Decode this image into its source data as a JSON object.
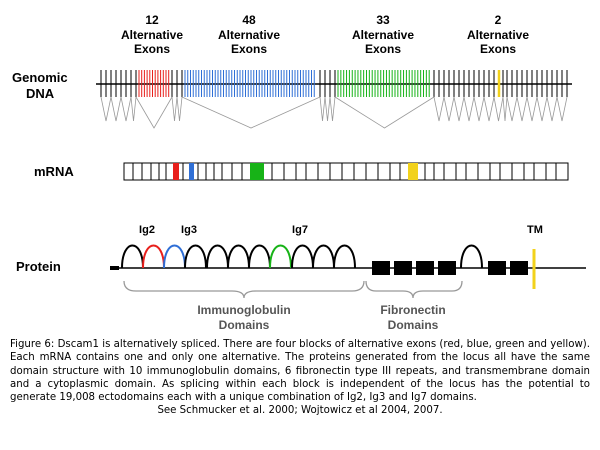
{
  "blocks": [
    {
      "count": "12",
      "label_line1": "Alternative",
      "label_line2": "Exons",
      "color": "#e8201c"
    },
    {
      "count": "48",
      "label_line1": "Alternative",
      "label_line2": "Exons",
      "color": "#2f6fd6"
    },
    {
      "count": "33",
      "label_line1": "Alternative",
      "label_line2": "Exons",
      "color": "#17b317"
    },
    {
      "count": "2",
      "label_line1": "Alternative",
      "label_line2": "Exons",
      "color": "#f2d21b"
    }
  ],
  "rows": {
    "genomic_line1": "Genomic",
    "genomic_line2": "DNA",
    "mrna": "mRNA",
    "protein": "Protein"
  },
  "protein_labels": {
    "ig2": "Ig2",
    "ig3": "Ig3",
    "ig7": "Ig7",
    "tm": "TM"
  },
  "domains": {
    "ig_line1": "Immunoglobulin",
    "ig_line2": "Domains",
    "fn_line1": "Fibronectin",
    "fn_line2": "Domains"
  },
  "caption": {
    "body": "Figure 6: Dscam1 is alternatively spliced. There are four blocks of alternative exons (red, blue, green and yellow). Each mRNA contains one and only one alternative. The proteins generated from the locus all have the same domain structure with 10 immunoglobulin domains, 6 fibronectin type III repeats, and transmembrane domain and a cytoplasmic domain. As splicing within each block is independent of the locus has the potential to generate 19,008 ectodomains each with a unique combination of Ig2, Ig3 and Ig7 domains.",
    "refs": "See Schmucker et al. 2000; Wojtowicz et al 2004, 2007."
  }
}
